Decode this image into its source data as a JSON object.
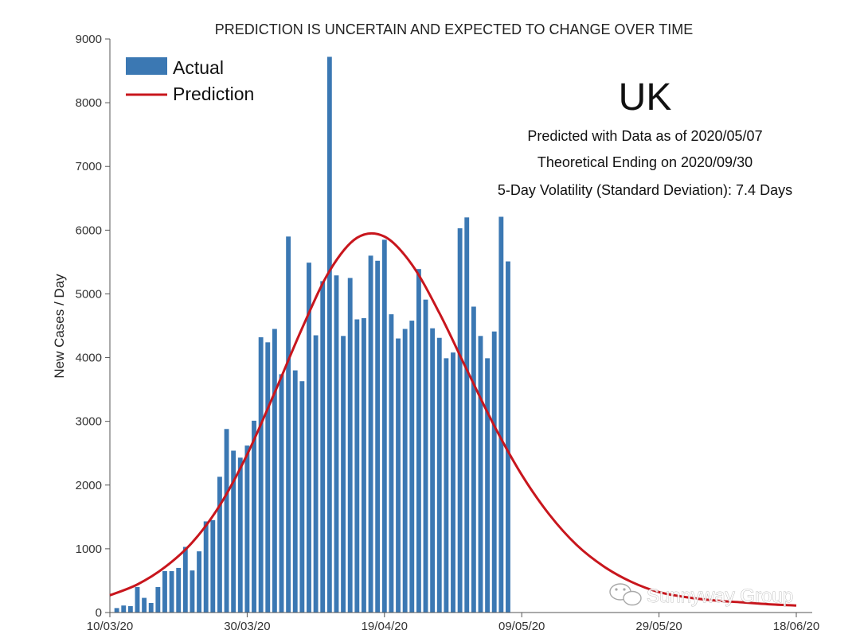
{
  "chart_data": {
    "type": "bar",
    "title": "PREDICTION IS UNCERTAIN AND EXPECTED TO CHANGE OVER TIME",
    "xlabel": "",
    "ylabel": "New Cases / Day",
    "ylim": [
      0,
      9000
    ],
    "yticks": [
      "0",
      "1000",
      "2000",
      "3000",
      "4000",
      "5000",
      "6000",
      "7000",
      "8000",
      "9000"
    ],
    "xlim": [
      "2020-03-10",
      "2020-06-18"
    ],
    "xticks": [
      {
        "date": "2020-03-10",
        "label": "10/03/20"
      },
      {
        "date": "2020-03-30",
        "label": "30/03/20"
      },
      {
        "date": "2020-04-19",
        "label": "19/04/20"
      },
      {
        "date": "2020-05-09",
        "label": "09/05/20"
      },
      {
        "date": "2020-05-29",
        "label": "29/05/20"
      },
      {
        "date": "2020-06-18",
        "label": "18/06/20"
      }
    ],
    "grid": false,
    "legend_position": "top-left",
    "series": [
      {
        "name": "Actual",
        "type": "bar",
        "color": "#3b78b3",
        "x": [
          "2020-03-11",
          "2020-03-12",
          "2020-03-13",
          "2020-03-14",
          "2020-03-15",
          "2020-03-16",
          "2020-03-17",
          "2020-03-18",
          "2020-03-19",
          "2020-03-20",
          "2020-03-21",
          "2020-03-22",
          "2020-03-23",
          "2020-03-24",
          "2020-03-25",
          "2020-03-26",
          "2020-03-27",
          "2020-03-28",
          "2020-03-29",
          "2020-03-30",
          "2020-03-31",
          "2020-04-01",
          "2020-04-02",
          "2020-04-03",
          "2020-04-04",
          "2020-04-05",
          "2020-04-06",
          "2020-04-07",
          "2020-04-08",
          "2020-04-09",
          "2020-04-10",
          "2020-04-11",
          "2020-04-12",
          "2020-04-13",
          "2020-04-14",
          "2020-04-15",
          "2020-04-16",
          "2020-04-17",
          "2020-04-18",
          "2020-04-19",
          "2020-04-20",
          "2020-04-21",
          "2020-04-22",
          "2020-04-23",
          "2020-04-24",
          "2020-04-25",
          "2020-04-26",
          "2020-04-27",
          "2020-04-28",
          "2020-04-29",
          "2020-04-30",
          "2020-05-01",
          "2020-05-02",
          "2020-05-03",
          "2020-05-04",
          "2020-05-05",
          "2020-05-06",
          "2020-05-07"
        ],
        "values": [
          70,
          110,
          100,
          400,
          230,
          150,
          400,
          650,
          650,
          700,
          1030,
          660,
          960,
          1430,
          1450,
          2130,
          2880,
          2540,
          2430,
          2620,
          3010,
          4320,
          4240,
          4450,
          3740,
          5900,
          3800,
          3630,
          5490,
          4350,
          5200,
          8720,
          5290,
          4340,
          5250,
          4600,
          4620,
          5600,
          5520,
          5850,
          4680,
          4300,
          4450,
          4580,
          5390,
          4910,
          4460,
          4310,
          3990,
          4080,
          6030,
          6200,
          4800,
          4340,
          3990,
          4410,
          6210,
          5510
        ]
      },
      {
        "name": "Prediction",
        "type": "line",
        "color": "#c8161d",
        "x": [
          "2020-03-10",
          "2020-03-14",
          "2020-03-18",
          "2020-03-22",
          "2020-03-26",
          "2020-03-30",
          "2020-04-03",
          "2020-04-07",
          "2020-04-11",
          "2020-04-15",
          "2020-04-19",
          "2020-04-23",
          "2020-04-27",
          "2020-05-01",
          "2020-05-05",
          "2020-05-09",
          "2020-05-13",
          "2020-05-17",
          "2020-05-21",
          "2020-05-25",
          "2020-05-29",
          "2020-06-02",
          "2020-06-06",
          "2020-06-10",
          "2020-06-14",
          "2020-06-18"
        ],
        "values": [
          270,
          440,
          710,
          1100,
          1680,
          2480,
          3450,
          4460,
          5360,
          5880,
          5900,
          5460,
          4700,
          3810,
          2930,
          2160,
          1540,
          1060,
          720,
          480,
          320,
          240,
          190,
          160,
          130,
          110
        ]
      }
    ],
    "annotations": {
      "country": "UK",
      "lines": [
        "Predicted with Data as of 2020/05/07",
        "Theoretical Ending on 2020/09/30",
        "5-Day Volatility (Standard Deviation): 7.4 Days"
      ]
    }
  },
  "watermark": {
    "icon": "wechat-icon",
    "text": "Sunnyway Group"
  }
}
